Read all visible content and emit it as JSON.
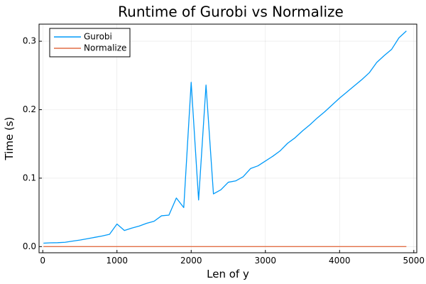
{
  "chart_data": {
    "type": "line",
    "title": "Runtime of Gurobi vs Normalize",
    "xlabel": "Len of y",
    "ylabel": "Time (s)",
    "xlim": [
      -50,
      5040
    ],
    "ylim": [
      -0.009,
      0.325
    ],
    "xticks": [
      0,
      1000,
      2000,
      3000,
      4000,
      5000
    ],
    "xtick_labels": [
      "0",
      "1000",
      "2000",
      "3000",
      "4000",
      "5000"
    ],
    "yticks": [
      0.0,
      0.1,
      0.2,
      0.3
    ],
    "ytick_labels": [
      "0.0",
      "0.1",
      "0.2",
      "0.3"
    ],
    "grid": true,
    "legend_position": "top-left",
    "series": [
      {
        "name": "Gurobi",
        "color": "#009af9",
        "x": [
          10,
          100,
          200,
          300,
          400,
          500,
          600,
          700,
          800,
          900,
          1000,
          1100,
          1200,
          1300,
          1400,
          1500,
          1600,
          1700,
          1800,
          1900,
          2000,
          2100,
          2200,
          2300,
          2400,
          2500,
          2600,
          2700,
          2800,
          2900,
          3000,
          3100,
          3200,
          3300,
          3400,
          3500,
          3600,
          3700,
          3800,
          3900,
          4000,
          4100,
          4200,
          4300,
          4400,
          4500,
          4600,
          4700,
          4800,
          4900
        ],
        "y": [
          0.005,
          0.0055,
          0.0057,
          0.0063,
          0.008,
          0.0095,
          0.0115,
          0.0135,
          0.0155,
          0.018,
          0.033,
          0.0235,
          0.027,
          0.03,
          0.034,
          0.037,
          0.045,
          0.046,
          0.071,
          0.057,
          0.24,
          0.068,
          0.236,
          0.077,
          0.083,
          0.094,
          0.096,
          0.102,
          0.114,
          0.118,
          0.125,
          0.132,
          0.14,
          0.151,
          0.159,
          0.169,
          0.178,
          0.188,
          0.197,
          0.207,
          0.217,
          0.226,
          0.235,
          0.244,
          0.254,
          0.269,
          0.279,
          0.288,
          0.305,
          0.315
        ]
      },
      {
        "name": "Normalize",
        "color": "#e26f46",
        "x": [
          10,
          4900
        ],
        "y": [
          0.0,
          0.0
        ]
      }
    ]
  }
}
